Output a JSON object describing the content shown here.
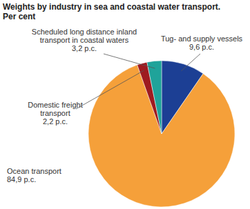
{
  "chart_data": {
    "type": "pie",
    "title": "Weights by industry in sea and coastal water transport.",
    "subtitle": "Per cent",
    "categories": [
      "Tug- and supply vessels",
      "Ocean transport",
      "Domestic freight transport",
      "Scheduled long distance inland transport in coastal waters"
    ],
    "values": [
      9.6,
      84.9,
      2.2,
      3.2
    ],
    "value_labels": [
      "9,6 p.c.",
      "84,9 p.c.",
      "2,2 p.c.",
      "3,2 p.c."
    ],
    "colors": [
      "#1c3f94",
      "#f5a03a",
      "#9e1b20",
      "#1fa39a"
    ],
    "data_labels": true
  }
}
